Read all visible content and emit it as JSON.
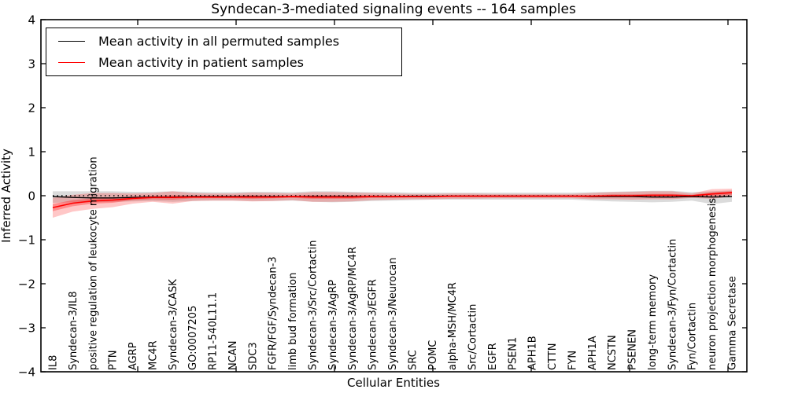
{
  "chart_data": {
    "type": "line",
    "title": "Syndecan-3-mediated signaling events -- 164 samples",
    "xlabel": "Cellular Entities",
    "ylabel": "Inferred Activity",
    "ylim": [
      -4,
      4
    ],
    "yticks": [
      4,
      3,
      2,
      1,
      0,
      -1,
      -2,
      -3,
      -4
    ],
    "yticklabels": [
      "4",
      "3",
      "2",
      "1",
      "0",
      "−1",
      "−2",
      "−3",
      "−4"
    ],
    "grid": false,
    "legend_position": "upper left",
    "zero_line": {
      "value": 0,
      "style": "dotted",
      "color": "#000000"
    },
    "categories": [
      "IL8",
      "Syndecan-3/IL8",
      "positive regulation of leukocyte migration",
      "PTN",
      "AGRP",
      "MC4R",
      "Syndecan-3/CASK",
      "GO:0007205",
      "RP11-540L11.1",
      "NCAN",
      "SDC3",
      "FGFR/FGF/Syndecan-3",
      "limb bud formation",
      "Syndecan-3/Src/Cortactin",
      "Syndecan-3/AgRP",
      "Syndecan-3/AgRP/MC4R",
      "Syndecan-3/EGFR",
      "Syndecan-3/Neurocan",
      "SRC",
      "POMC",
      "alpha-MSH/MC4R",
      "Src/Cortactin",
      "EGFR",
      "PSEN1",
      "APH1B",
      "CTTN",
      "FYN",
      "APH1A",
      "NCSTN",
      "PSENEN",
      "long-term memory",
      "Syndecan-3/Fyn/Cortactin",
      "Fyn/Cortactin",
      "neuron projection morphogenesis",
      "Gamma Secretase"
    ],
    "series": [
      {
        "name": "Mean activity in all permuted samples",
        "color": "#000000",
        "values": [
          -0.02,
          -0.04,
          -0.05,
          -0.05,
          -0.04,
          -0.03,
          -0.03,
          -0.02,
          -0.02,
          -0.02,
          -0.02,
          -0.02,
          -0.02,
          -0.02,
          -0.02,
          -0.02,
          -0.02,
          -0.02,
          -0.01,
          -0.01,
          -0.01,
          -0.01,
          -0.01,
          -0.01,
          -0.01,
          -0.01,
          -0.01,
          -0.02,
          -0.02,
          -0.02,
          -0.03,
          -0.03,
          -0.02,
          -0.03,
          -0.02
        ],
        "band": {
          "color": "rgba(0,0,0,0.14)",
          "hi": [
            0.1,
            0.1,
            0.1,
            0.1,
            0.09,
            0.09,
            0.1,
            0.09,
            0.08,
            0.08,
            0.09,
            0.09,
            0.08,
            0.1,
            0.1,
            0.09,
            0.08,
            0.08,
            0.07,
            0.07,
            0.07,
            0.07,
            0.07,
            0.07,
            0.07,
            0.07,
            0.07,
            0.08,
            0.09,
            0.1,
            0.11,
            0.11,
            0.08,
            0.1,
            0.12
          ],
          "lo": [
            -0.16,
            -0.15,
            -0.15,
            -0.14,
            -0.13,
            -0.12,
            -0.14,
            -0.12,
            -0.11,
            -0.11,
            -0.12,
            -0.12,
            -0.11,
            -0.14,
            -0.15,
            -0.14,
            -0.12,
            -0.11,
            -0.1,
            -0.09,
            -0.09,
            -0.09,
            -0.09,
            -0.09,
            -0.09,
            -0.09,
            -0.09,
            -0.11,
            -0.13,
            -0.14,
            -0.15,
            -0.14,
            -0.11,
            -0.19,
            -0.14
          ]
        }
      },
      {
        "name": "Mean activity in patient samples",
        "color": "#ff0000",
        "values": [
          -0.27,
          -0.17,
          -0.12,
          -0.1,
          -0.06,
          -0.04,
          -0.04,
          -0.03,
          -0.03,
          -0.03,
          -0.03,
          -0.03,
          -0.02,
          -0.03,
          -0.03,
          -0.03,
          -0.02,
          -0.02,
          -0.02,
          -0.02,
          -0.01,
          -0.01,
          -0.01,
          -0.01,
          -0.01,
          -0.01,
          -0.01,
          -0.01,
          0.0,
          0.0,
          0.01,
          0.01,
          0.0,
          0.04,
          0.07
        ],
        "band": {
          "color": "rgba(255,0,0,0.22)",
          "hi": [
            -0.05,
            0.02,
            0.06,
            0.06,
            0.05,
            0.06,
            0.1,
            0.06,
            0.05,
            0.05,
            0.07,
            0.06,
            0.05,
            0.08,
            0.08,
            0.07,
            0.06,
            0.05,
            0.04,
            0.04,
            0.05,
            0.05,
            0.04,
            0.04,
            0.04,
            0.04,
            0.04,
            0.06,
            0.08,
            0.09,
            0.1,
            0.1,
            0.05,
            0.15,
            0.16
          ],
          "lo": [
            -0.5,
            -0.36,
            -0.3,
            -0.26,
            -0.18,
            -0.14,
            -0.18,
            -0.12,
            -0.11,
            -0.11,
            -0.13,
            -0.12,
            -0.1,
            -0.14,
            -0.14,
            -0.13,
            -0.1,
            -0.09,
            -0.08,
            -0.08,
            -0.07,
            -0.07,
            -0.06,
            -0.06,
            -0.06,
            -0.06,
            -0.06,
            -0.08,
            -0.08,
            -0.09,
            -0.08,
            -0.08,
            -0.05,
            -0.07,
            -0.02
          ]
        },
        "inner_band": {
          "color": "rgba(255,0,0,0.30)",
          "hi": [
            -0.19,
            -0.1,
            -0.06,
            -0.04,
            -0.02,
            0.0,
            0.01,
            0.0,
            0.0,
            0.0,
            0.01,
            0.0,
            0.0,
            0.01,
            0.01,
            0.01,
            0.01,
            0.0,
            0.0,
            0.0,
            0.01,
            0.01,
            0.01,
            0.01,
            0.01,
            0.01,
            0.01,
            0.01,
            0.03,
            0.03,
            0.04,
            0.04,
            0.02,
            0.08,
            0.1
          ],
          "lo": [
            -0.35,
            -0.24,
            -0.18,
            -0.16,
            -0.1,
            -0.08,
            -0.09,
            -0.06,
            -0.06,
            -0.06,
            -0.07,
            -0.06,
            -0.05,
            -0.07,
            -0.07,
            -0.07,
            -0.05,
            -0.05,
            -0.04,
            -0.04,
            -0.03,
            -0.03,
            -0.03,
            -0.03,
            -0.03,
            -0.03,
            -0.03,
            -0.04,
            -0.03,
            -0.03,
            -0.02,
            -0.02,
            -0.02,
            -0.01,
            0.02
          ]
        }
      }
    ]
  }
}
